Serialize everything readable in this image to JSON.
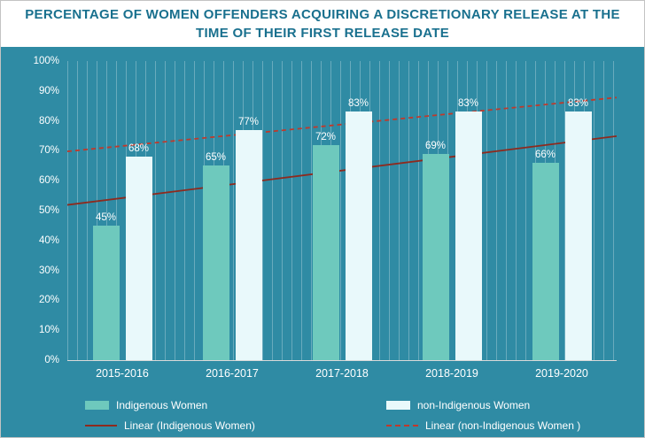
{
  "title": "PERCENTAGE OF WOMEN OFFENDERS ACQUIRING A DISCRETIONARY RELEASE AT THE TIME OF THEIR FIRST RELEASE DATE",
  "chart_data": {
    "type": "bar",
    "categories": [
      "2015-2016",
      "2016-2017",
      "2017-2018",
      "2018-2019",
      "2019-2020"
    ],
    "series": [
      {
        "name": "Indigenous Women",
        "values": [
          45,
          65,
          72,
          69,
          66
        ],
        "color": "#6ec9bd"
      },
      {
        "name": "non-Indigenous Women",
        "values": [
          68,
          77,
          83,
          83,
          83
        ],
        "color": "#e9f9fb"
      }
    ],
    "trendlines": [
      {
        "name": "Linear (Indigenous Women)",
        "series": 0,
        "style": "solid",
        "color": "#8e2a1e"
      },
      {
        "name": "Linear (non-Indigenous Women )",
        "series": 1,
        "style": "dashed",
        "color": "#c0392b"
      }
    ],
    "ylim": [
      0,
      100
    ],
    "ytick_step": 10,
    "ytick_suffix": "%",
    "data_label_suffix": "%",
    "data_labels": true,
    "gridlines": "vertical-fine",
    "legend_position": "bottom"
  },
  "legend": {
    "items": [
      {
        "label": "Indigenous Women",
        "swatch": "bar",
        "color": "#6ec9bd"
      },
      {
        "label": "non-Indigenous Women",
        "swatch": "bar",
        "color": "#e9f9fb"
      },
      {
        "label": "Linear (Indigenous Women)",
        "swatch": "line-solid",
        "color": "#8e2a1e"
      },
      {
        "label": "Linear (non-Indigenous Women )",
        "swatch": "line-dashed",
        "color": "#c0392b"
      }
    ]
  },
  "colors": {
    "background": "#2f8ba4",
    "title_text": "#19708e",
    "axis_text": "#ffffff",
    "gridline": "rgba(255,255,255,0.28)"
  }
}
